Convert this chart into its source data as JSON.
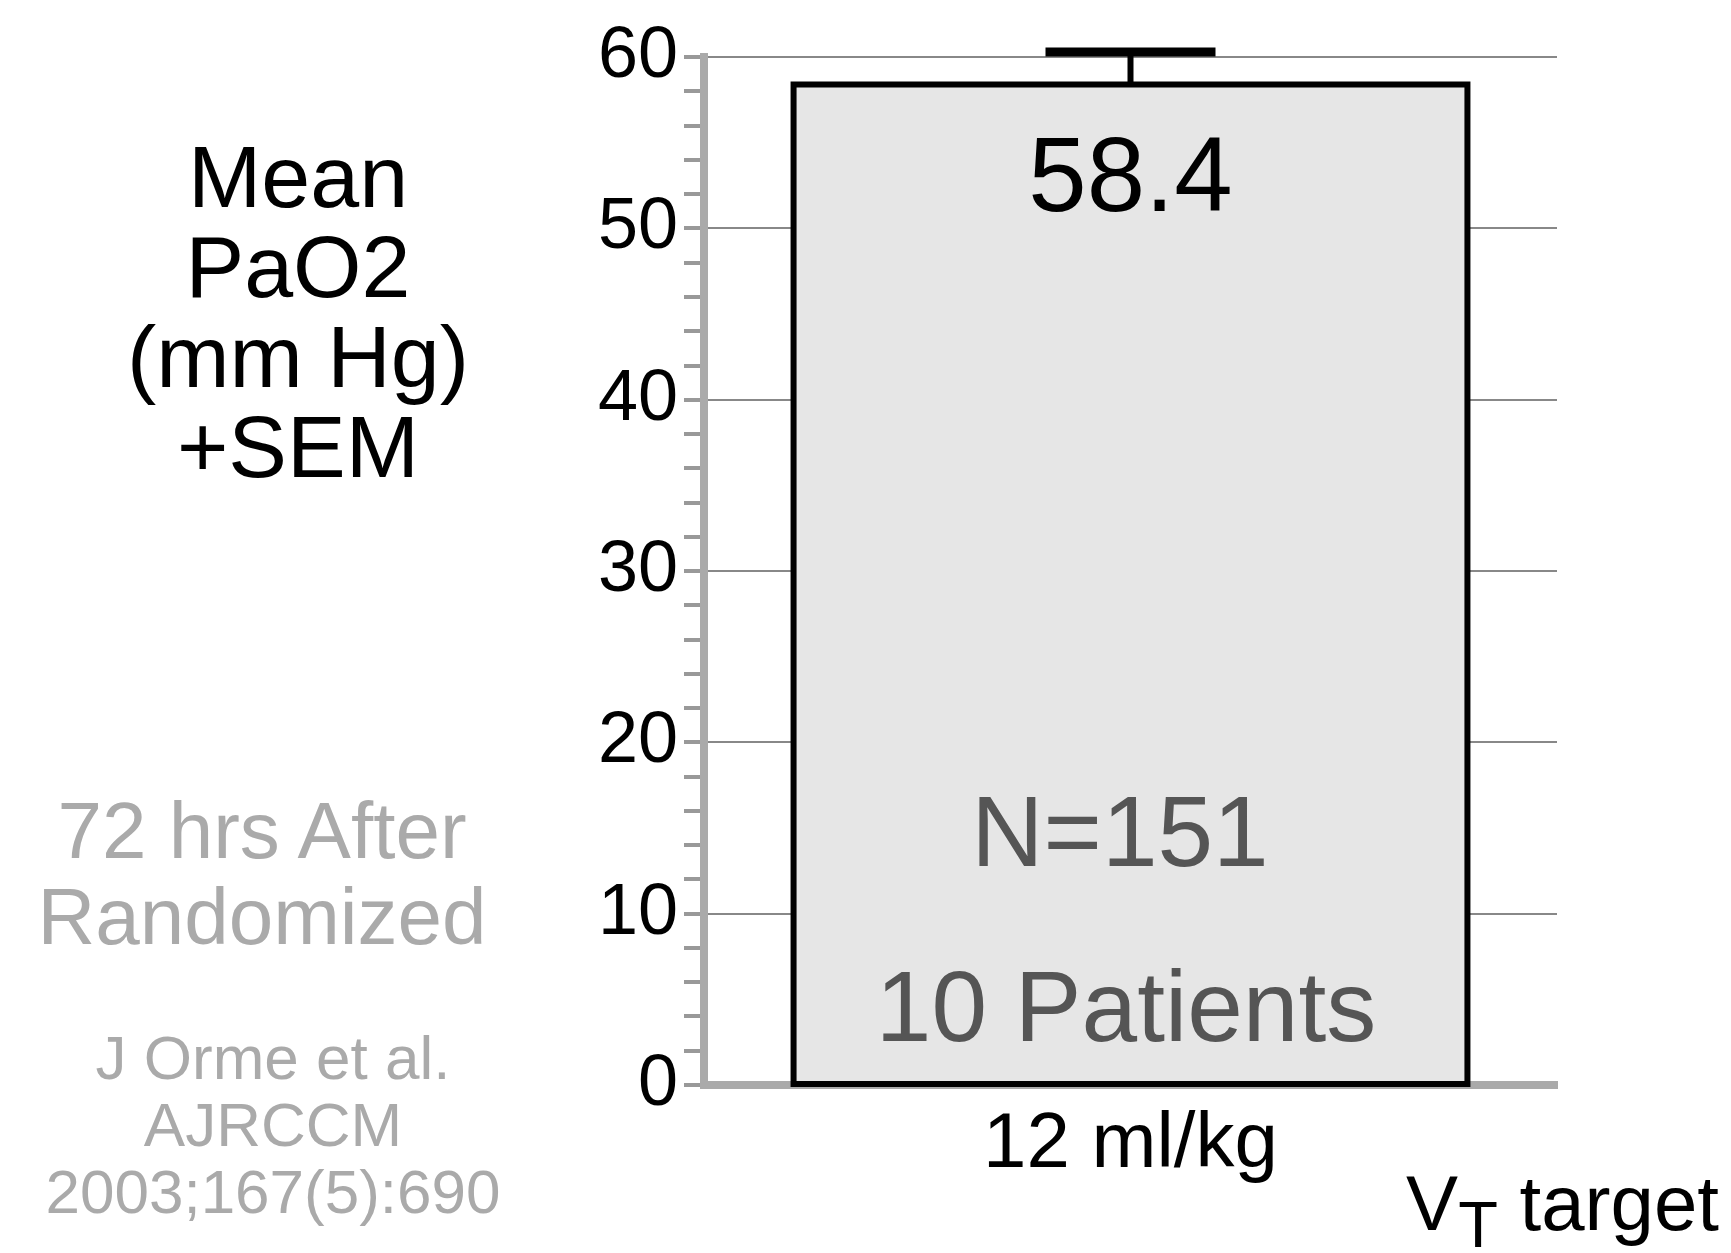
{
  "chart_data": {
    "type": "bar",
    "ylabel": "Mean\nPaO2\n(mm Hg)\n+SEM",
    "xlabel": "V$_{T}$ target",
    "categories": [
      "12 ml/kg"
    ],
    "series": [
      {
        "color": "#e6e6e6",
        "values": [
          58.4
        ],
        "errors": [
          1.9
        ]
      }
    ],
    "data_labels": true,
    "ylim": [
      0,
      60
    ],
    "yticks": [
      0,
      {
        "value": 2,
        "label": null
      },
      {
        "value": 4,
        "label": null
      },
      {
        "value": 6,
        "label": null
      },
      {
        "value": 8,
        "label": null
      },
      10,
      {
        "value": 12,
        "label": null
      },
      {
        "value": 14,
        "label": null
      },
      {
        "value": 16,
        "label": null
      },
      {
        "value": 18,
        "label": null
      },
      20,
      {
        "value": 22,
        "label": null
      },
      {
        "value": 24,
        "label": null
      },
      {
        "value": 26,
        "label": null
      },
      {
        "value": 28,
        "label": null
      },
      30,
      {
        "value": 32,
        "label": null
      },
      {
        "value": 34,
        "label": null
      },
      {
        "value": 36,
        "label": null
      },
      {
        "value": 38,
        "label": null
      },
      40,
      {
        "value": 42,
        "label": null
      },
      {
        "value": 44,
        "label": null
      },
      {
        "value": 46,
        "label": null
      },
      {
        "value": 48,
        "label": null
      },
      50,
      {
        "value": 52,
        "label": null
      },
      {
        "value": 54,
        "label": null
      },
      {
        "value": 56,
        "label": null
      },
      {
        "value": 58,
        "label": null
      },
      60
    ],
    "grid": "y",
    "legend": false,
    "annotations": [
      "N=151",
      "10 Patients",
      "72 hrs After\nRandomized",
      "J Orme et al.\nAJRCCM\n2003;167(5):690"
    ]
  }
}
